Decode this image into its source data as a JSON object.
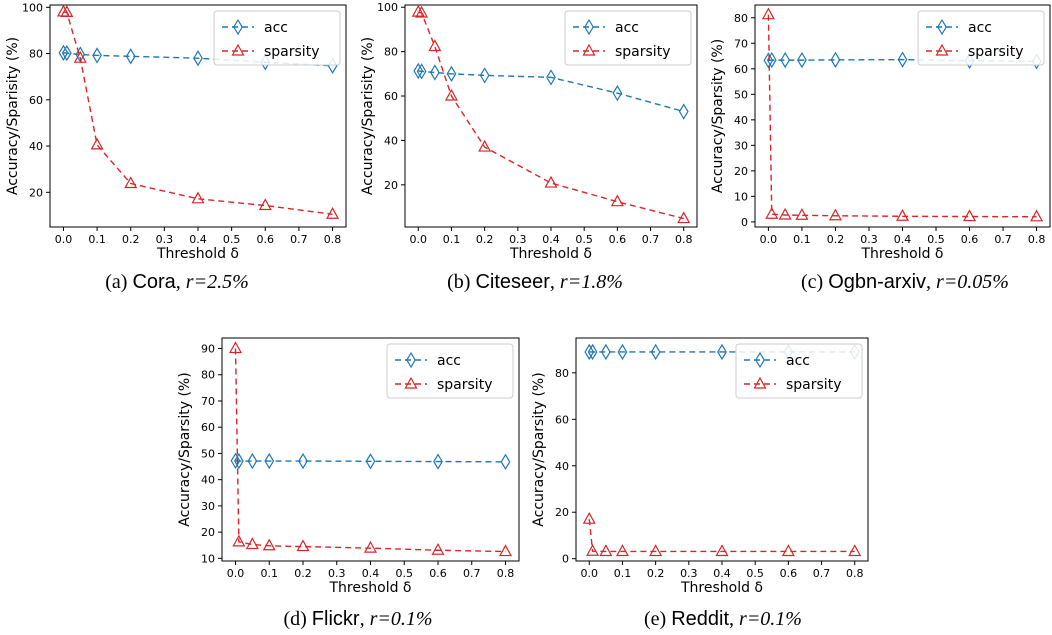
{
  "colors": {
    "acc": "#1f77b4",
    "sparsity": "#d62728",
    "axis": "#000000"
  },
  "chart_data": [
    {
      "type": "line",
      "panel": "a",
      "caption": {
        "prefix": "(a)",
        "dataset": "Cora",
        "ratio": "r=2.5%"
      },
      "xlabel": "Threshold δ",
      "ylabel": "Accuracy/Sparisity (%)",
      "x": [
        0.0,
        0.01,
        0.05,
        0.1,
        0.2,
        0.4,
        0.6,
        0.8
      ],
      "xlim": [
        -0.04,
        0.84
      ],
      "ylim": [
        5,
        101
      ],
      "xticks": [
        0.0,
        0.1,
        0.2,
        0.3,
        0.4,
        0.5,
        0.6,
        0.7,
        0.8
      ],
      "xtick_labels": [
        "0.0",
        "0.1",
        "0.2",
        "0.3",
        "0.4",
        "0.5",
        "0.6",
        "0.7",
        "0.8"
      ],
      "yticks": [
        20,
        40,
        60,
        80,
        100
      ],
      "ytick_labels": [
        "20",
        "40",
        "60",
        "80",
        "100"
      ],
      "legend_loc": "top-right",
      "series": [
        {
          "name": "acc",
          "marker": "diamond",
          "values": [
            80.3,
            80.2,
            79.6,
            79.2,
            78.8,
            78.0,
            76.2,
            74.7
          ]
        },
        {
          "name": "sparsity",
          "marker": "triangle",
          "values": [
            98.0,
            97.8,
            78.0,
            40.5,
            23.8,
            17.2,
            14.3,
            10.5
          ]
        }
      ]
    },
    {
      "type": "line",
      "panel": "b",
      "caption": {
        "prefix": "(b)",
        "dataset": "Citeseer",
        "ratio": "r=1.8%"
      },
      "xlabel": "Threshold δ",
      "ylabel": "Accuracy/Sparisity (%)",
      "x": [
        0.0,
        0.01,
        0.05,
        0.1,
        0.2,
        0.4,
        0.6,
        0.8
      ],
      "xlim": [
        -0.04,
        0.84
      ],
      "ylim": [
        1,
        101
      ],
      "xticks": [
        0.0,
        0.1,
        0.2,
        0.3,
        0.4,
        0.5,
        0.6,
        0.7,
        0.8
      ],
      "xtick_labels": [
        "0.0",
        "0.1",
        "0.2",
        "0.3",
        "0.4",
        "0.5",
        "0.6",
        "0.7",
        "0.8"
      ],
      "yticks": [
        20,
        40,
        60,
        80,
        100
      ],
      "ytick_labels": [
        "20",
        "40",
        "60",
        "80",
        "100"
      ],
      "legend_loc": "top-right",
      "series": [
        {
          "name": "acc",
          "marker": "diamond",
          "values": [
            71.3,
            71.1,
            70.6,
            70.0,
            69.3,
            68.4,
            61.3,
            53.0
          ]
        },
        {
          "name": "sparsity",
          "marker": "triangle",
          "values": [
            97.8,
            97.4,
            82.3,
            60.0,
            37.0,
            20.8,
            12.4,
            4.8
          ]
        }
      ]
    },
    {
      "type": "line",
      "panel": "c",
      "caption": {
        "prefix": "(c)",
        "dataset": "Ogbn-arxiv",
        "ratio": "r=0.05%"
      },
      "xlabel": "Threshold δ",
      "ylabel": "Accuracy/Sparsity (%)",
      "x": [
        0.0,
        0.01,
        0.05,
        0.1,
        0.2,
        0.4,
        0.6,
        0.8
      ],
      "xlim": [
        -0.04,
        0.84
      ],
      "ylim": [
        -2,
        85
      ],
      "xticks": [
        0.0,
        0.1,
        0.2,
        0.3,
        0.4,
        0.5,
        0.6,
        0.7,
        0.8
      ],
      "xtick_labels": [
        "0.0",
        "0.1",
        "0.2",
        "0.3",
        "0.4",
        "0.5",
        "0.6",
        "0.7",
        "0.8"
      ],
      "yticks": [
        0,
        10,
        20,
        30,
        40,
        50,
        60,
        70,
        80
      ],
      "ytick_labels": [
        "0",
        "10",
        "20",
        "30",
        "40",
        "50",
        "60",
        "70",
        "80"
      ],
      "legend_loc": "top-right",
      "series": [
        {
          "name": "acc",
          "marker": "diamond",
          "values": [
            63.3,
            63.4,
            63.4,
            63.4,
            63.5,
            63.6,
            63.1,
            62.9
          ]
        },
        {
          "name": "sparsity",
          "marker": "triangle",
          "values": [
            81.2,
            3.0,
            2.7,
            2.6,
            2.4,
            2.2,
            2.1,
            2.0
          ]
        }
      ]
    },
    {
      "type": "line",
      "panel": "d",
      "caption": {
        "prefix": "(d)",
        "dataset": "Flickr",
        "ratio": "r=0.1%"
      },
      "xlabel": "Threshold δ",
      "ylabel": "Accuracy/Sparsity (%)",
      "x": [
        0.0,
        0.01,
        0.05,
        0.1,
        0.2,
        0.4,
        0.6,
        0.8
      ],
      "xlim": [
        -0.04,
        0.84
      ],
      "ylim": [
        9,
        94
      ],
      "xticks": [
        0.0,
        0.1,
        0.2,
        0.3,
        0.4,
        0.5,
        0.6,
        0.7,
        0.8
      ],
      "xtick_labels": [
        "0.0",
        "0.1",
        "0.2",
        "0.3",
        "0.4",
        "0.5",
        "0.6",
        "0.7",
        "0.8"
      ],
      "yticks": [
        10,
        20,
        30,
        40,
        50,
        60,
        70,
        80,
        90
      ],
      "ytick_labels": [
        "10",
        "20",
        "30",
        "40",
        "50",
        "60",
        "70",
        "80",
        "90"
      ],
      "legend_loc": "top-right",
      "series": [
        {
          "name": "acc",
          "marker": "diamond",
          "values": [
            47.2,
            47.1,
            47.1,
            47.1,
            47.1,
            47.0,
            46.9,
            46.8
          ]
        },
        {
          "name": "sparsity",
          "marker": "triangle",
          "values": [
            90.0,
            16.3,
            15.3,
            14.8,
            14.5,
            13.9,
            13.1,
            12.6
          ]
        }
      ]
    },
    {
      "type": "line",
      "panel": "e",
      "caption": {
        "prefix": "(e)",
        "dataset": "Reddit",
        "ratio": "r=0.1%"
      },
      "xlabel": "Threshold δ",
      "ylabel": "Accuracy/Sparsity (%)",
      "x": [
        0.0,
        0.01,
        0.05,
        0.1,
        0.2,
        0.4,
        0.6,
        0.8
      ],
      "xlim": [
        -0.04,
        0.84
      ],
      "ylim": [
        -1,
        95
      ],
      "xticks": [
        0.0,
        0.1,
        0.2,
        0.3,
        0.4,
        0.5,
        0.6,
        0.7,
        0.8
      ],
      "xtick_labels": [
        "0.0",
        "0.1",
        "0.2",
        "0.3",
        "0.4",
        "0.5",
        "0.6",
        "0.7",
        "0.8"
      ],
      "yticks": [
        0,
        20,
        40,
        60,
        80
      ],
      "ytick_labels": [
        "0",
        "20",
        "40",
        "60",
        "80"
      ],
      "legend_loc": "top-right",
      "series": [
        {
          "name": "acc",
          "marker": "diamond",
          "values": [
            89.0,
            89.0,
            89.0,
            89.0,
            89.0,
            89.0,
            89.0,
            89.0
          ]
        },
        {
          "name": "sparsity",
          "marker": "triangle",
          "values": [
            17.0,
            3.2,
            3.1,
            3.1,
            3.1,
            3.1,
            3.1,
            3.1
          ]
        }
      ]
    }
  ]
}
